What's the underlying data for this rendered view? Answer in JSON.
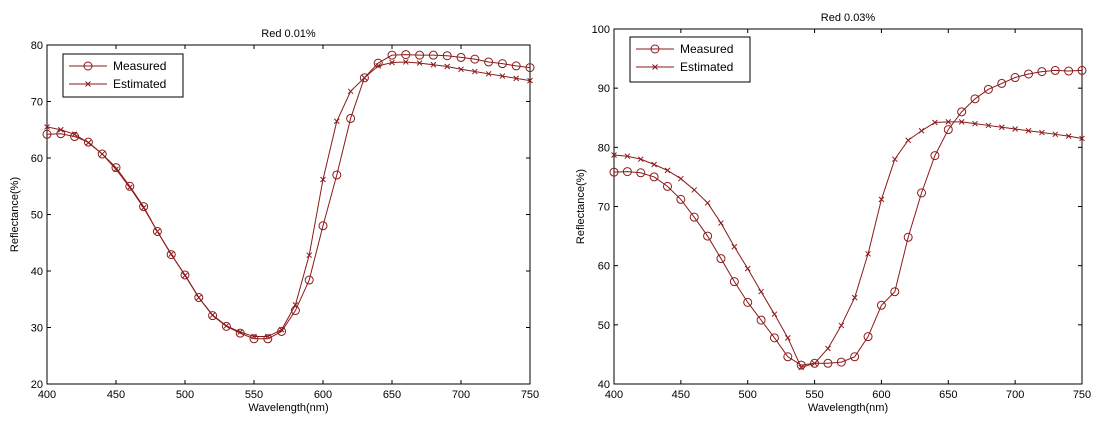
{
  "chart_data": [
    {
      "type": "line",
      "title": "Red 0.01%",
      "xlabel": "Wavelength(nm)",
      "ylabel": "Reflectance(%)",
      "xlim": [
        400,
        750
      ],
      "ylim": [
        20,
        80
      ],
      "xticks": [
        400,
        450,
        500,
        550,
        600,
        650,
        700,
        750
      ],
      "yticks": [
        20,
        30,
        40,
        50,
        60,
        70,
        80
      ],
      "grid": false,
      "legend": "top-left",
      "series": [
        {
          "name": "Measured",
          "marker": "circle",
          "color": "#8b1a1a",
          "x": [
            400,
            410,
            420,
            430,
            440,
            450,
            460,
            470,
            480,
            490,
            500,
            510,
            520,
            530,
            540,
            550,
            560,
            570,
            580,
            590,
            600,
            610,
            620,
            630,
            640,
            650,
            660,
            670,
            680,
            690,
            700,
            710,
            720,
            730,
            740,
            750
          ],
          "y": [
            64.2,
            64.3,
            63.8,
            62.8,
            60.7,
            58.3,
            55.0,
            51.4,
            47.0,
            42.9,
            39.3,
            35.3,
            32.1,
            30.2,
            29.0,
            28.0,
            28.0,
            29.3,
            33.0,
            38.4,
            48.0,
            57.0,
            67.0,
            74.2,
            76.8,
            78.2,
            78.3,
            78.2,
            78.2,
            78.1,
            77.8,
            77.5,
            77.0,
            76.7,
            76.3,
            76.0
          ]
        },
        {
          "name": "Estimated",
          "marker": "x",
          "color": "#8b1a1a",
          "x": [
            400,
            410,
            420,
            430,
            440,
            450,
            460,
            470,
            480,
            490,
            500,
            510,
            520,
            530,
            540,
            550,
            560,
            570,
            580,
            590,
            600,
            610,
            620,
            630,
            640,
            650,
            660,
            670,
            680,
            690,
            700,
            710,
            720,
            730,
            740,
            750
          ],
          "y": [
            65.5,
            65.0,
            64.2,
            62.7,
            60.7,
            58.0,
            54.8,
            51.2,
            47.0,
            43.0,
            39.2,
            35.3,
            32.2,
            30.3,
            29.2,
            28.4,
            28.4,
            29.6,
            34.0,
            42.8,
            56.2,
            66.5,
            71.8,
            74.2,
            76.3,
            76.9,
            77.0,
            76.8,
            76.5,
            76.2,
            75.7,
            75.3,
            74.9,
            74.5,
            74.1,
            73.7
          ]
        }
      ]
    },
    {
      "type": "line",
      "title": "Red 0.03%",
      "xlabel": "Wavelength(nm)",
      "ylabel": "Reflectance(%)",
      "xlim": [
        400,
        750
      ],
      "ylim": [
        40,
        100
      ],
      "xticks": [
        400,
        450,
        500,
        550,
        600,
        650,
        700,
        750
      ],
      "yticks": [
        40,
        50,
        60,
        70,
        80,
        90,
        100
      ],
      "grid": false,
      "legend": "top-left",
      "series": [
        {
          "name": "Measured",
          "marker": "circle",
          "color": "#8b1a1a",
          "x": [
            400,
            410,
            420,
            430,
            440,
            450,
            460,
            470,
            480,
            490,
            500,
            510,
            520,
            530,
            540,
            550,
            560,
            570,
            580,
            590,
            600,
            610,
            620,
            630,
            640,
            650,
            660,
            670,
            680,
            690,
            700,
            710,
            720,
            730,
            740,
            750
          ],
          "y": [
            75.8,
            75.9,
            75.7,
            75.0,
            73.4,
            71.2,
            68.2,
            65.0,
            61.2,
            57.3,
            53.8,
            50.8,
            47.8,
            44.6,
            43.2,
            43.5,
            43.5,
            43.7,
            44.6,
            48.0,
            53.3,
            55.6,
            64.8,
            72.3,
            78.6,
            83.0,
            86.0,
            88.2,
            89.8,
            90.8,
            91.8,
            92.4,
            92.8,
            93.0,
            92.9,
            93.0
          ]
        },
        {
          "name": "Estimated",
          "marker": "x",
          "color": "#8b1a1a",
          "x": [
            400,
            410,
            420,
            430,
            440,
            450,
            460,
            470,
            480,
            490,
            500,
            510,
            520,
            530,
            540,
            550,
            560,
            570,
            580,
            590,
            600,
            610,
            620,
            630,
            640,
            650,
            660,
            670,
            680,
            690,
            700,
            710,
            720,
            730,
            740,
            750
          ],
          "y": [
            78.7,
            78.5,
            78.0,
            77.1,
            76.1,
            74.7,
            72.8,
            70.6,
            67.2,
            63.2,
            59.5,
            55.6,
            51.8,
            47.8,
            42.8,
            43.5,
            46.0,
            49.9,
            54.6,
            62.0,
            71.2,
            78.0,
            81.2,
            82.8,
            84.2,
            84.3,
            84.3,
            84.0,
            83.7,
            83.4,
            83.1,
            82.8,
            82.5,
            82.2,
            81.9,
            81.5
          ]
        }
      ]
    }
  ]
}
